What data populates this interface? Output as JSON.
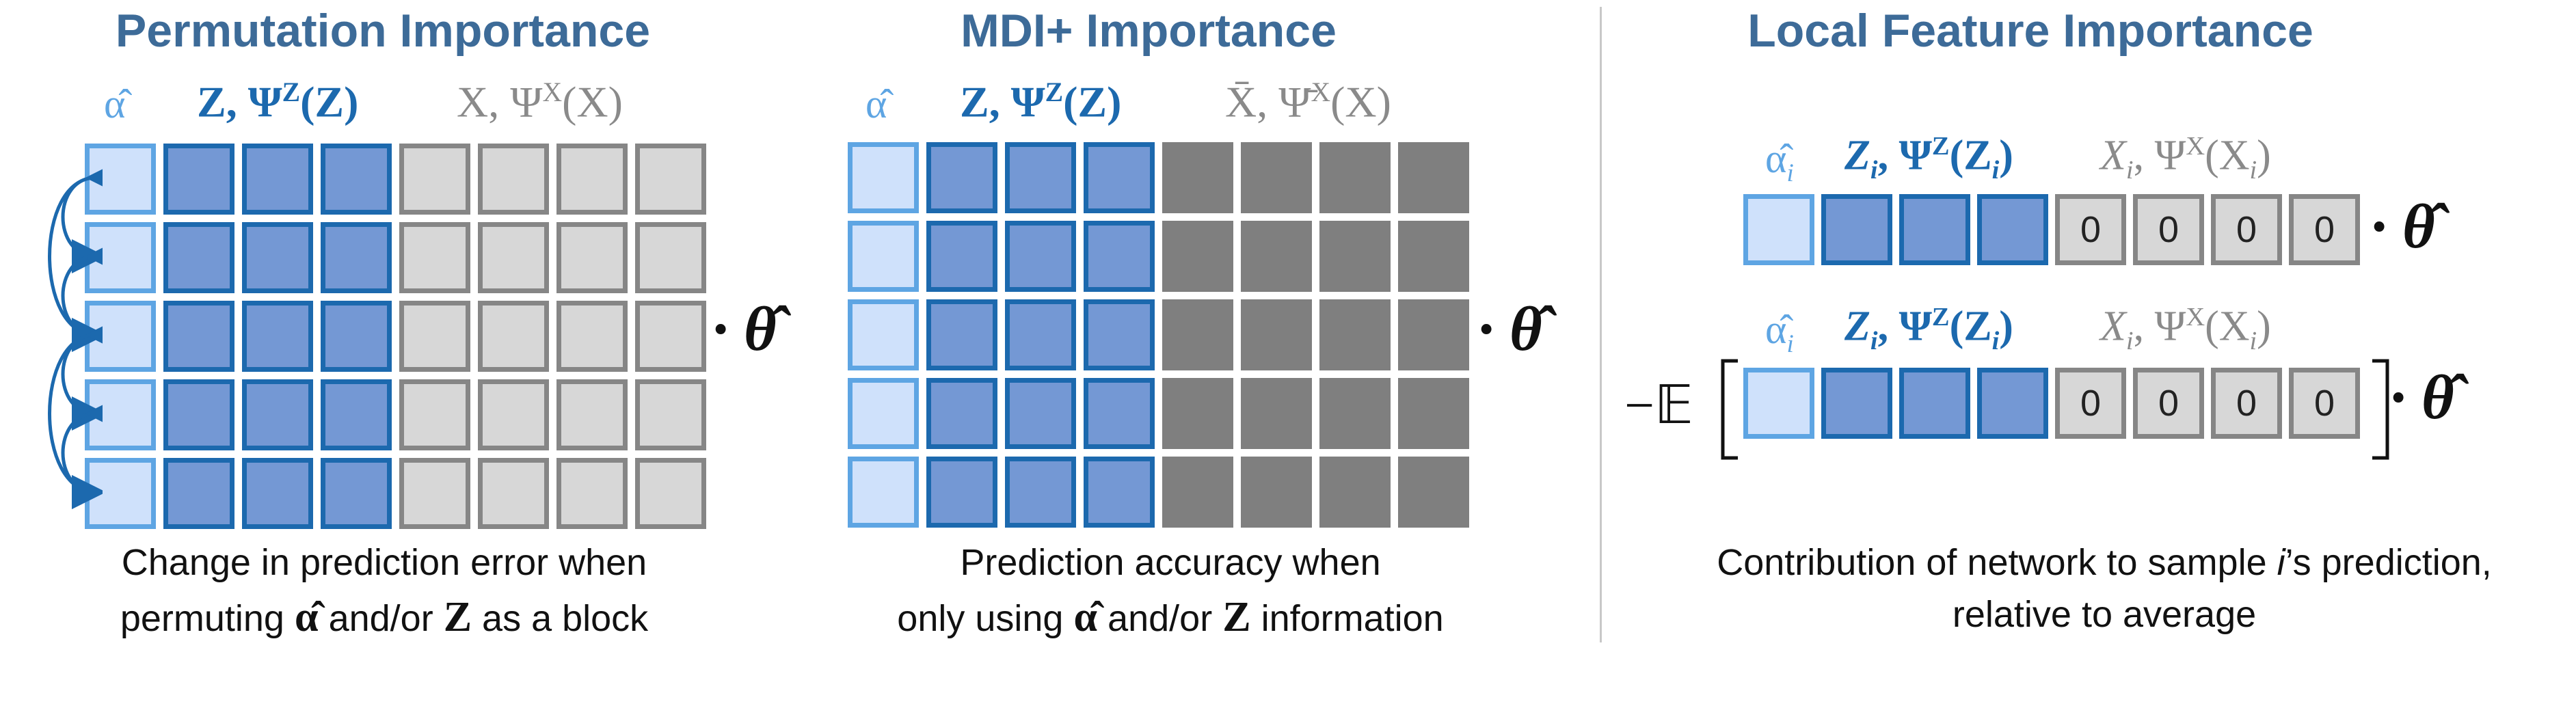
{
  "panels": {
    "permutation": {
      "title": "Permutation Importance",
      "header_alpha": "α̂",
      "header_z": "Z, Ψ",
      "header_z_sup": "Z",
      "header_z_tail": "(Z)",
      "header_x": "X, Ψ",
      "header_x_sup": "X",
      "header_x_tail": "(X)",
      "theta": "· θ̂",
      "caption_line1": "Change in prediction error when",
      "caption_line2_a": "permuting ",
      "caption_alpha": "α̂",
      "caption_line2_b": " and/or ",
      "caption_z": "Z",
      "caption_line2_c": " as a block"
    },
    "mdi": {
      "title": "MDI+ Importance",
      "header_alpha": "α̂",
      "header_z": "Z, Ψ",
      "header_z_sup": "Z",
      "header_z_tail": "(Z)",
      "header_x": "X̄, Ψ̄",
      "header_x_sup": "X",
      "header_x_tail": "(X)",
      "theta": "· θ̂",
      "caption_line1": "Prediction accuracy when",
      "caption_line2_a": "only using ",
      "caption_alpha": "α̂",
      "caption_line2_b": " and/or ",
      "caption_z": "Z",
      "caption_line2_c": " information"
    },
    "local": {
      "title": "Local Feature Importance",
      "header_alpha": "α̂",
      "header_alpha_sub": "i",
      "header_z": "Z",
      "header_z_sub": "i",
      "header_z_psi": ", Ψ",
      "header_z_sup": "Z",
      "header_z_tail": "(Z",
      "header_z_tail_sub": "i",
      "header_z_close": ")",
      "header_x": "X",
      "header_x_sub": "i",
      "header_x_psi": ", Ψ",
      "header_x_sup": "X",
      "header_x_tail": "(X",
      "header_x_tail_sub": "i",
      "header_x_close": ")",
      "zero_value": "0",
      "theta": "· θ̂",
      "expectation": "−𝔼",
      "caption_line1_a": "Contribution of network to sample ",
      "caption_i": "i",
      "caption_line1_b": "’s prediction,",
      "caption_line2": "relative to average"
    }
  },
  "colors": {
    "title": "#3d6b98",
    "alpha_fill": "#cfe1fb",
    "alpha_border": "#5ea5e3",
    "z_fill": "#7498d4",
    "z_border": "#1c69ae",
    "x_fill": "#d7d7d7",
    "x_border": "#868686",
    "x_dark": "#7f7f7f",
    "arrow": "#1c69ae"
  }
}
